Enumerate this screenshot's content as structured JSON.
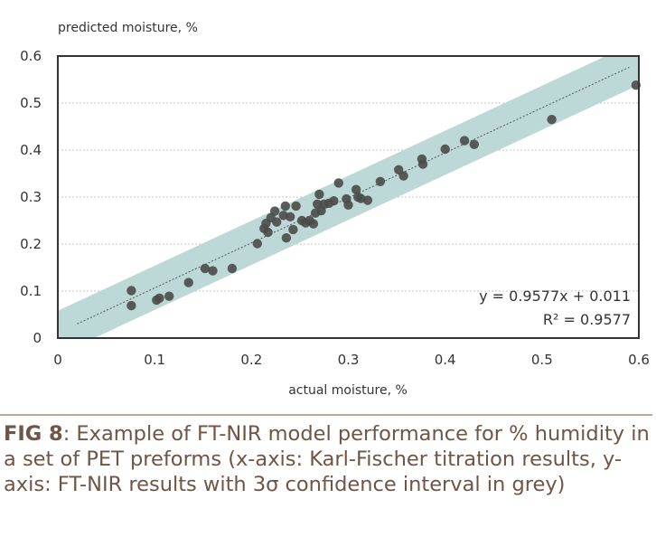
{
  "chart_data": {
    "type": "scatter",
    "ylabel": "predicted moisture, %",
    "xlabel": "actual moisture, %",
    "xlim": [
      0,
      0.6
    ],
    "ylim": [
      0,
      0.6
    ],
    "xticks": [
      "0",
      "0.1",
      "0.2",
      "0.3",
      "0.4",
      "0.5",
      "0.6"
    ],
    "yticks": [
      "0",
      "0.1",
      "0.2",
      "0.3",
      "0.4",
      "0.5",
      "0.6"
    ],
    "grid": true,
    "equation": "y = 0.9577x + 0.011",
    "r_squared": "R² = 0.9577",
    "fit": {
      "slope": 0.9577,
      "intercept": 0.011,
      "x_range": [
        0.02,
        0.59
      ]
    },
    "confidence_band_halfwidth": 0.047,
    "colors": {
      "band": "#bcd9d7",
      "points": "#4a4a4a",
      "fit_line": "#555555",
      "grid": "#c4c4c4"
    },
    "points": [
      [
        0.076,
        0.101
      ],
      [
        0.076,
        0.069
      ],
      [
        0.102,
        0.081
      ],
      [
        0.105,
        0.085
      ],
      [
        0.115,
        0.089
      ],
      [
        0.135,
        0.118
      ],
      [
        0.152,
        0.148
      ],
      [
        0.16,
        0.143
      ],
      [
        0.18,
        0.148
      ],
      [
        0.206,
        0.201
      ],
      [
        0.213,
        0.233
      ],
      [
        0.215,
        0.244
      ],
      [
        0.217,
        0.225
      ],
      [
        0.22,
        0.256
      ],
      [
        0.224,
        0.27
      ],
      [
        0.226,
        0.247
      ],
      [
        0.233,
        0.261
      ],
      [
        0.235,
        0.281
      ],
      [
        0.236,
        0.213
      ],
      [
        0.24,
        0.258
      ],
      [
        0.243,
        0.231
      ],
      [
        0.246,
        0.281
      ],
      [
        0.252,
        0.25
      ],
      [
        0.256,
        0.245
      ],
      [
        0.26,
        0.25
      ],
      [
        0.264,
        0.243
      ],
      [
        0.266,
        0.266
      ],
      [
        0.268,
        0.285
      ],
      [
        0.27,
        0.306
      ],
      [
        0.272,
        0.271
      ],
      [
        0.275,
        0.285
      ],
      [
        0.28,
        0.287
      ],
      [
        0.285,
        0.292
      ],
      [
        0.29,
        0.33
      ],
      [
        0.298,
        0.296
      ],
      [
        0.3,
        0.283
      ],
      [
        0.308,
        0.316
      ],
      [
        0.31,
        0.3
      ],
      [
        0.313,
        0.297
      ],
      [
        0.32,
        0.293
      ],
      [
        0.333,
        0.333
      ],
      [
        0.352,
        0.358
      ],
      [
        0.357,
        0.345
      ],
      [
        0.376,
        0.381
      ],
      [
        0.377,
        0.37
      ],
      [
        0.4,
        0.402
      ],
      [
        0.42,
        0.42
      ],
      [
        0.43,
        0.412
      ],
      [
        0.51,
        0.465
      ],
      [
        0.597,
        0.538
      ]
    ]
  },
  "caption": {
    "label": "FIG 8",
    "text": ": Example of FT-NIR model performance for % humidity in a set of PET preforms (x-axis: Karl-Fischer titration results, y-axis: FT-NIR results with 3σ confidence interval in grey)"
  }
}
